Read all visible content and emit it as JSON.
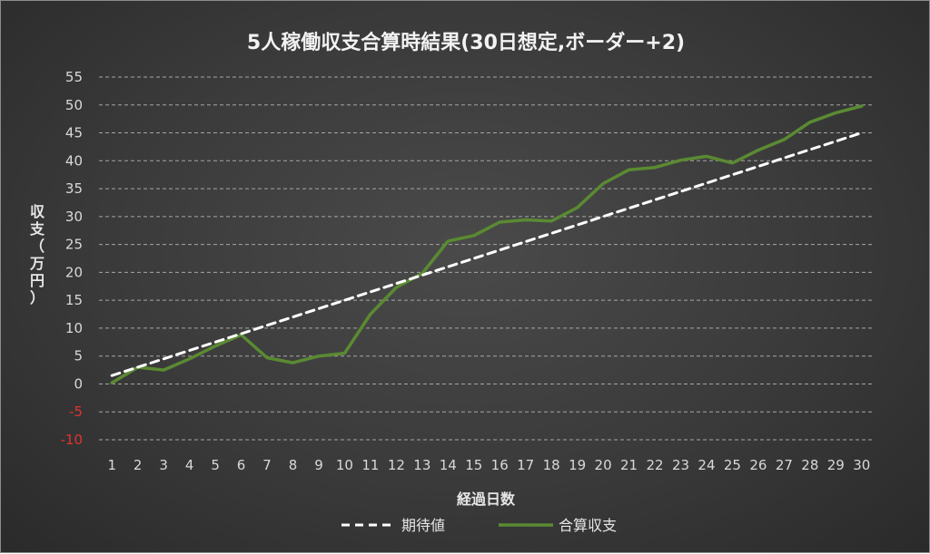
{
  "chart_data": {
    "type": "line",
    "title": "5人稼働収支合算時結果(30日想定,ボーダー+2)",
    "xlabel": "経過日数",
    "ylabel_chars": [
      "収",
      "支",
      "（",
      "万",
      "円",
      "）"
    ],
    "ylim": [
      -10,
      55
    ],
    "ytick_step": 5,
    "negative_tick_color": "#e0332e",
    "grid": true,
    "legend_position": "bottom",
    "x": [
      1,
      2,
      3,
      4,
      5,
      6,
      7,
      8,
      9,
      10,
      11,
      12,
      13,
      14,
      15,
      16,
      17,
      18,
      19,
      20,
      21,
      22,
      23,
      24,
      25,
      26,
      27,
      28,
      29,
      30
    ],
    "series": [
      {
        "name": "期待値",
        "style": "dashed",
        "color": "#ffffff",
        "values": [
          1.5,
          3.0,
          4.5,
          6.0,
          7.5,
          9.0,
          10.5,
          12.0,
          13.5,
          15.0,
          16.5,
          18.0,
          19.5,
          21.0,
          22.5,
          24.0,
          25.5,
          27.0,
          28.5,
          30.0,
          31.5,
          33.0,
          34.5,
          36.0,
          37.5,
          39.0,
          40.5,
          42.0,
          43.5,
          45.0
        ]
      },
      {
        "name": "合算収支",
        "style": "solid",
        "color": "#5a8a32",
        "values": [
          0.2,
          3.0,
          2.5,
          4.5,
          6.8,
          8.8,
          4.7,
          3.8,
          5.0,
          5.5,
          12.5,
          17.3,
          19.8,
          25.6,
          26.6,
          29.0,
          29.4,
          29.2,
          31.6,
          35.9,
          38.4,
          38.8,
          40.1,
          40.8,
          39.6,
          41.9,
          43.8,
          46.9,
          48.6,
          49.8
        ]
      }
    ]
  }
}
